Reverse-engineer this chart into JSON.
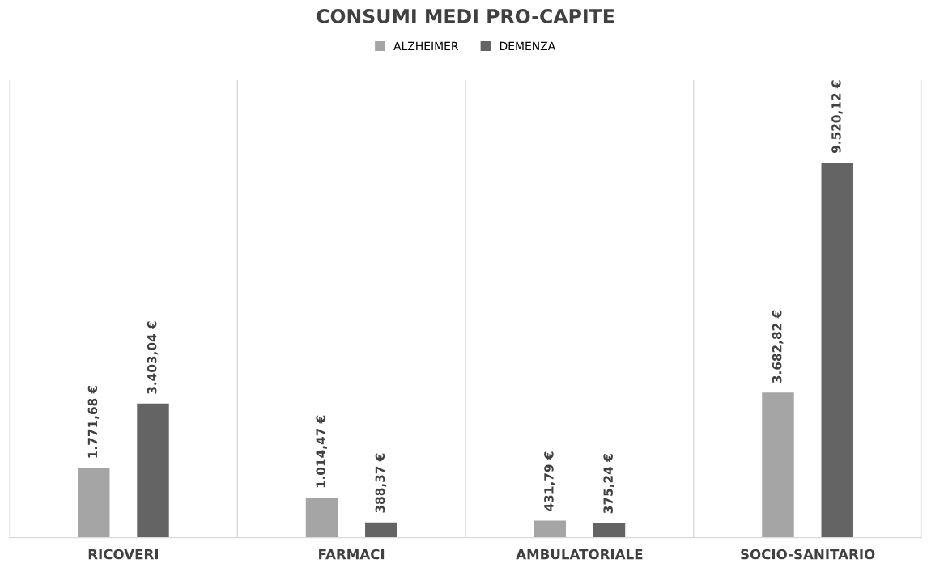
{
  "chart_data": {
    "type": "bar",
    "title": "CONSUMI MEDI PRO-CAPITE",
    "categories": [
      "RICOVERI",
      "FARMACI",
      "AMBULATORIALE",
      "SOCIO-SANITARIO"
    ],
    "series": [
      {
        "name": "ALZHEIMER",
        "color": "#a5a5a5",
        "values": [
          1771.68,
          1014.47,
          431.79,
          3682.82
        ],
        "value_labels": [
          "1.771,68 €",
          "1.014,47 €",
          "431,79 €",
          "3.682,82 €"
        ]
      },
      {
        "name": "DEMENZA",
        "color": "#646464",
        "values": [
          3403.04,
          388.37,
          375.24,
          9520.12
        ],
        "value_labels": [
          "3.403,04 €",
          "388,37 €",
          "375,24 €",
          "9.520,12 €"
        ]
      }
    ],
    "legend": "top",
    "grid": "x",
    "tick_labels": "x"
  }
}
